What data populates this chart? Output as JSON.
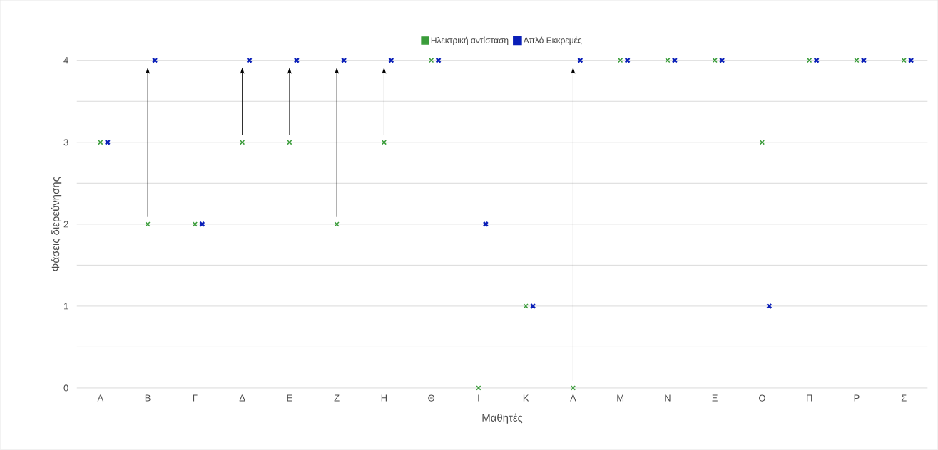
{
  "chart_data": {
    "type": "scatter",
    "categories": [
      "Α",
      "Β",
      "Γ",
      "Δ",
      "Ε",
      "Ζ",
      "Η",
      "Θ",
      "Ι",
      "Κ",
      "Λ",
      "Μ",
      "Ν",
      "Ξ",
      "Ο",
      "Π",
      "Ρ",
      "Σ"
    ],
    "series": [
      {
        "name": "Ηλεκτρική αντίσταση",
        "color": "#3a9c3a",
        "values": [
          3,
          2,
          2,
          3,
          3,
          2,
          3,
          4,
          0,
          1,
          0,
          4,
          4,
          4,
          3,
          4,
          4,
          4
        ]
      },
      {
        "name": "Απλό Εκκρεμές",
        "color": "#0a1fb8",
        "values": [
          3,
          4,
          2,
          4,
          4,
          4,
          4,
          4,
          2,
          1,
          4,
          4,
          4,
          4,
          1,
          4,
          4,
          4
        ]
      }
    ],
    "xlabel": "Μαθητές",
    "ylabel": "Φάσεις διερεύνησης",
    "ylim": [
      0,
      4
    ],
    "yticks": [
      0,
      {
        "value": 0.5,
        "label": null
      },
      1,
      {
        "value": 1.5,
        "label": null
      },
      2,
      {
        "value": 2.5,
        "label": null
      },
      3,
      {
        "value": 3.5,
        "label": null
      },
      4
    ],
    "grid": "y",
    "legend": "top",
    "marker": "cross"
  }
}
